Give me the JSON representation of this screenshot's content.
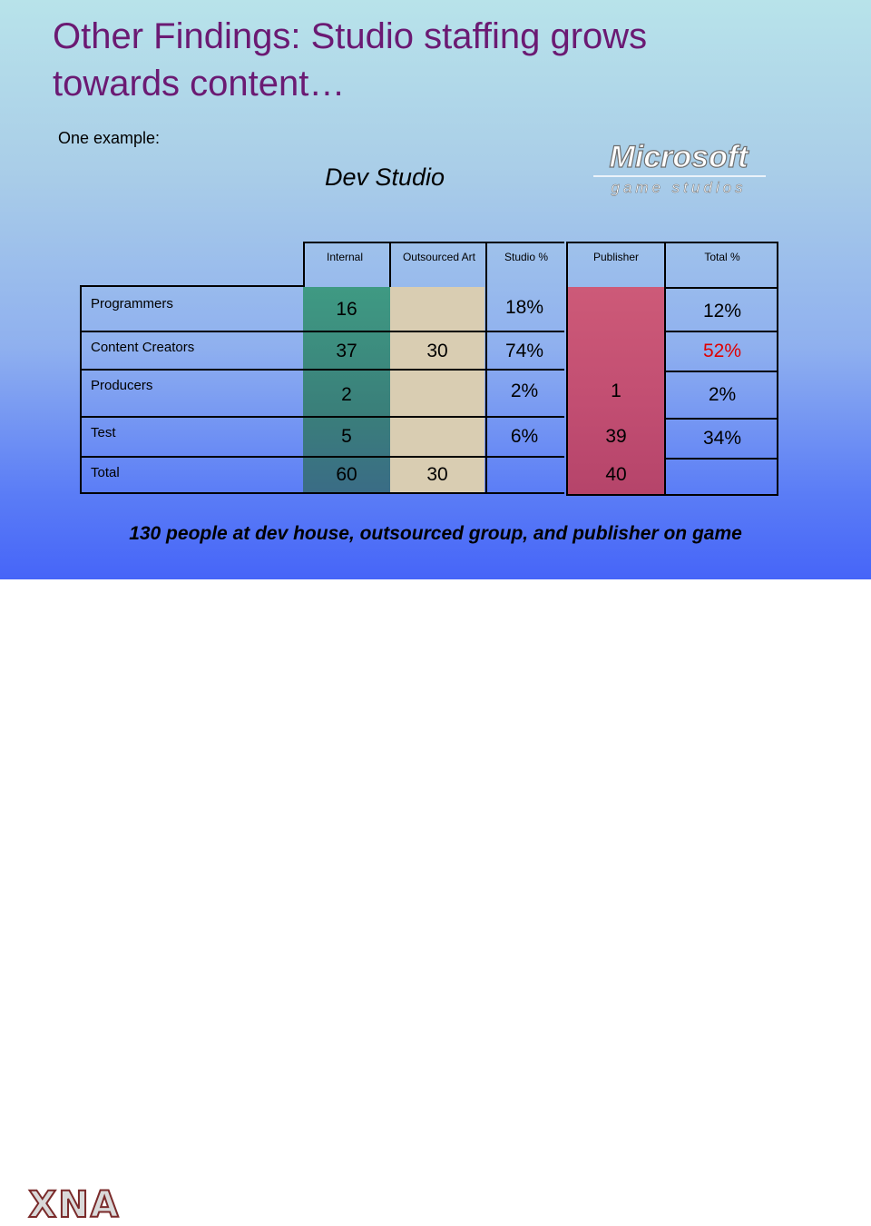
{
  "slide": {
    "title_line1": "Other Findings: Studio staffing grows",
    "title_line2": "towards content…",
    "intro": "One example:",
    "subtitle": "Dev Studio",
    "caption": "130 people at dev house, outsourced group, and publisher on game",
    "logo_microsoft": "Microsoft",
    "logo_game_studios": "game studios",
    "logo_xna": "XNA",
    "colors": {
      "title": "#6b1a73",
      "internal_col": "#3a8877",
      "outsourced_col": "#d8ccb0",
      "publisher_col": "#c85070",
      "highlight": "#e00000"
    }
  },
  "table": {
    "headers": {
      "internal": "Internal",
      "outsourced": "Outsourced Art",
      "studio_pct": "Studio %",
      "publisher": "Publisher",
      "total_pct": "Total %"
    },
    "rows": [
      {
        "label": "Programmers",
        "internal": "16",
        "outsourced": "",
        "studio_pct": "18%",
        "publisher": "",
        "total_pct": "12%"
      },
      {
        "label": "Content Creators",
        "internal": "37",
        "outsourced": "30",
        "studio_pct": "74%",
        "publisher": "",
        "total_pct": "52%"
      },
      {
        "label": "Producers",
        "internal": "2",
        "outsourced": "",
        "studio_pct": "2%",
        "publisher": "1",
        "total_pct": "2%"
      },
      {
        "label": "Test",
        "internal": "5",
        "outsourced": "",
        "studio_pct": "6%",
        "publisher": "39",
        "total_pct": "34%"
      },
      {
        "label": "Total",
        "internal": "60",
        "outsourced": "30",
        "studio_pct": "",
        "publisher": "40",
        "total_pct": ""
      }
    ]
  }
}
